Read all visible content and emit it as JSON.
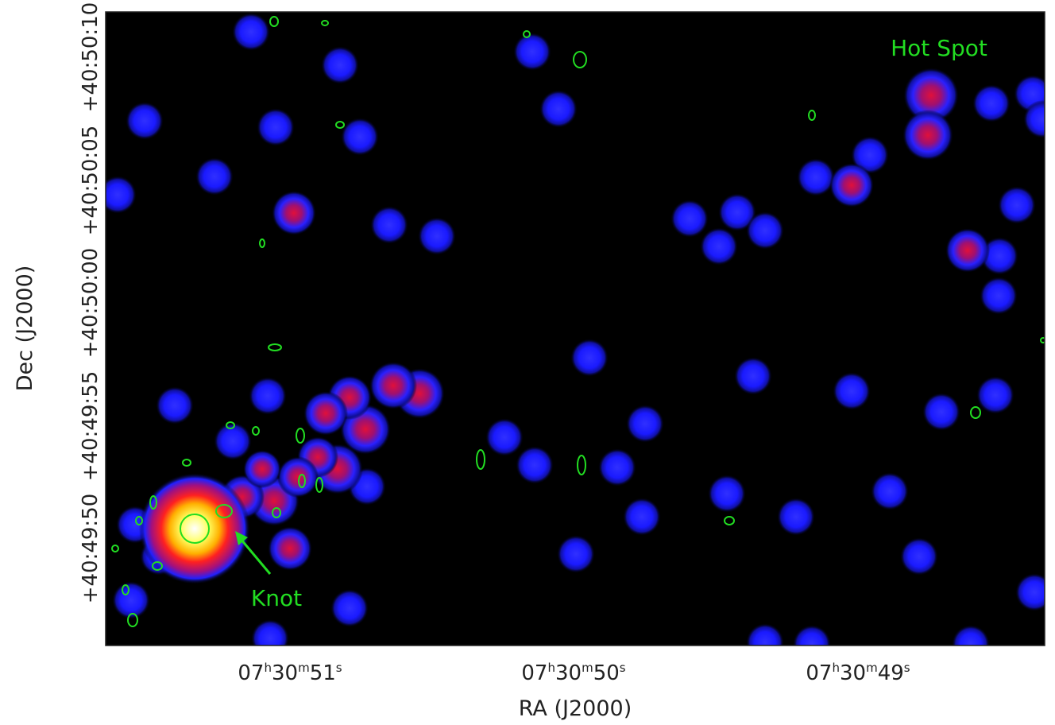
{
  "image": {
    "x_axis": {
      "label": "RA (J2000)",
      "ticks": [
        [
          "07",
          "h",
          "30",
          "m",
          "51",
          "s"
        ],
        [
          "07",
          "h",
          "30",
          "m",
          "50",
          "s"
        ],
        [
          "07",
          "h",
          "30",
          "m",
          "49",
          "s"
        ]
      ]
    },
    "y_axis": {
      "label": "Dec (J2000)",
      "ticks": [
        "+40:50:10",
        "+40:50:05",
        "+40:50:00",
        "+40:49:55",
        "+40:49:50"
      ]
    },
    "annotations": {
      "hot_spot": "Hot Spot",
      "knot": "Knot"
    }
  }
}
